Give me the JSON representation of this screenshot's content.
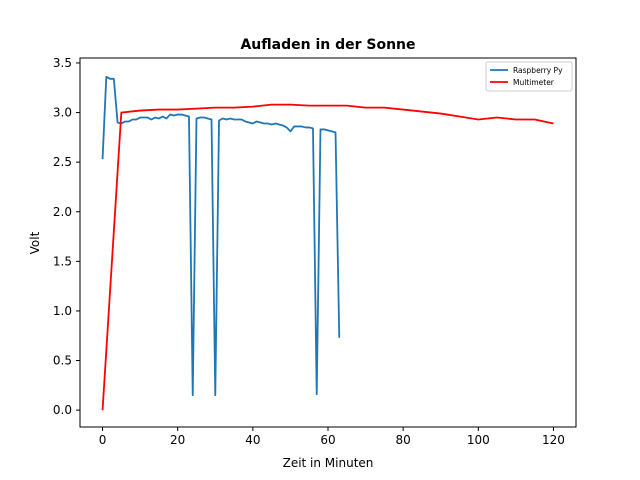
{
  "chart_data": {
    "type": "line",
    "title": "Aufladen in der Sonne",
    "xlabel": "Zeit in Minuten",
    "ylabel": "Volt",
    "xlim": [
      -6,
      126
    ],
    "ylim": [
      -0.17,
      3.55
    ],
    "xticks": [
      0,
      20,
      40,
      60,
      80,
      100,
      120
    ],
    "yticks": [
      0.0,
      0.5,
      1.0,
      1.5,
      2.0,
      2.5,
      3.0,
      3.5
    ],
    "grid": false,
    "legend_position": "top-right",
    "series": [
      {
        "name": "Raspberry Py",
        "color": "#1f77b4",
        "points": [
          [
            0,
            2.53
          ],
          [
            1,
            3.36
          ],
          [
            2,
            3.34
          ],
          [
            3,
            3.34
          ],
          [
            4,
            2.9
          ],
          [
            5,
            2.89
          ],
          [
            6,
            2.91
          ],
          [
            7,
            2.91
          ],
          [
            8,
            2.93
          ],
          [
            9,
            2.93
          ],
          [
            10,
            2.95
          ],
          [
            11,
            2.95
          ],
          [
            12,
            2.95
          ],
          [
            13,
            2.93
          ],
          [
            14,
            2.95
          ],
          [
            15,
            2.94
          ],
          [
            16,
            2.96
          ],
          [
            17,
            2.94
          ],
          [
            18,
            2.98
          ],
          [
            19,
            2.97
          ],
          [
            20,
            2.98
          ],
          [
            21,
            2.98
          ],
          [
            22,
            2.97
          ],
          [
            23,
            2.96
          ],
          [
            24,
            0.15
          ],
          [
            25,
            2.94
          ],
          [
            26,
            2.95
          ],
          [
            27,
            2.95
          ],
          [
            28,
            2.94
          ],
          [
            29,
            2.93
          ],
          [
            30,
            0.15
          ],
          [
            31,
            2.92
          ],
          [
            32,
            2.94
          ],
          [
            33,
            2.93
          ],
          [
            34,
            2.94
          ],
          [
            35,
            2.93
          ],
          [
            36,
            2.93
          ],
          [
            37,
            2.93
          ],
          [
            38,
            2.91
          ],
          [
            39,
            2.9
          ],
          [
            40,
            2.89
          ],
          [
            41,
            2.91
          ],
          [
            42,
            2.9
          ],
          [
            43,
            2.89
          ],
          [
            44,
            2.89
          ],
          [
            45,
            2.88
          ],
          [
            46,
            2.89
          ],
          [
            47,
            2.88
          ],
          [
            48,
            2.87
          ],
          [
            49,
            2.85
          ],
          [
            50,
            2.81
          ],
          [
            51,
            2.86
          ],
          [
            52,
            2.86
          ],
          [
            53,
            2.86
          ],
          [
            54,
            2.85
          ],
          [
            55,
            2.85
          ],
          [
            56,
            2.84
          ],
          [
            57,
            0.16
          ],
          [
            58,
            2.83
          ],
          [
            59,
            2.83
          ],
          [
            60,
            2.82
          ],
          [
            61,
            2.81
          ],
          [
            62,
            2.8
          ],
          [
            63,
            0.73
          ]
        ]
      },
      {
        "name": "Multimeter",
        "color": "#ff0000",
        "points": [
          [
            0,
            0.0
          ],
          [
            5,
            3.0
          ],
          [
            10,
            3.02
          ],
          [
            15,
            3.03
          ],
          [
            20,
            3.03
          ],
          [
            25,
            3.04
          ],
          [
            30,
            3.05
          ],
          [
            35,
            3.05
          ],
          [
            40,
            3.06
          ],
          [
            45,
            3.08
          ],
          [
            50,
            3.08
          ],
          [
            55,
            3.07
          ],
          [
            60,
            3.07
          ],
          [
            65,
            3.07
          ],
          [
            70,
            3.05
          ],
          [
            75,
            3.05
          ],
          [
            80,
            3.03
          ],
          [
            85,
            3.01
          ],
          [
            90,
            2.99
          ],
          [
            95,
            2.96
          ],
          [
            100,
            2.93
          ],
          [
            105,
            2.95
          ],
          [
            110,
            2.93
          ],
          [
            115,
            2.93
          ],
          [
            120,
            2.89
          ]
        ]
      }
    ]
  }
}
